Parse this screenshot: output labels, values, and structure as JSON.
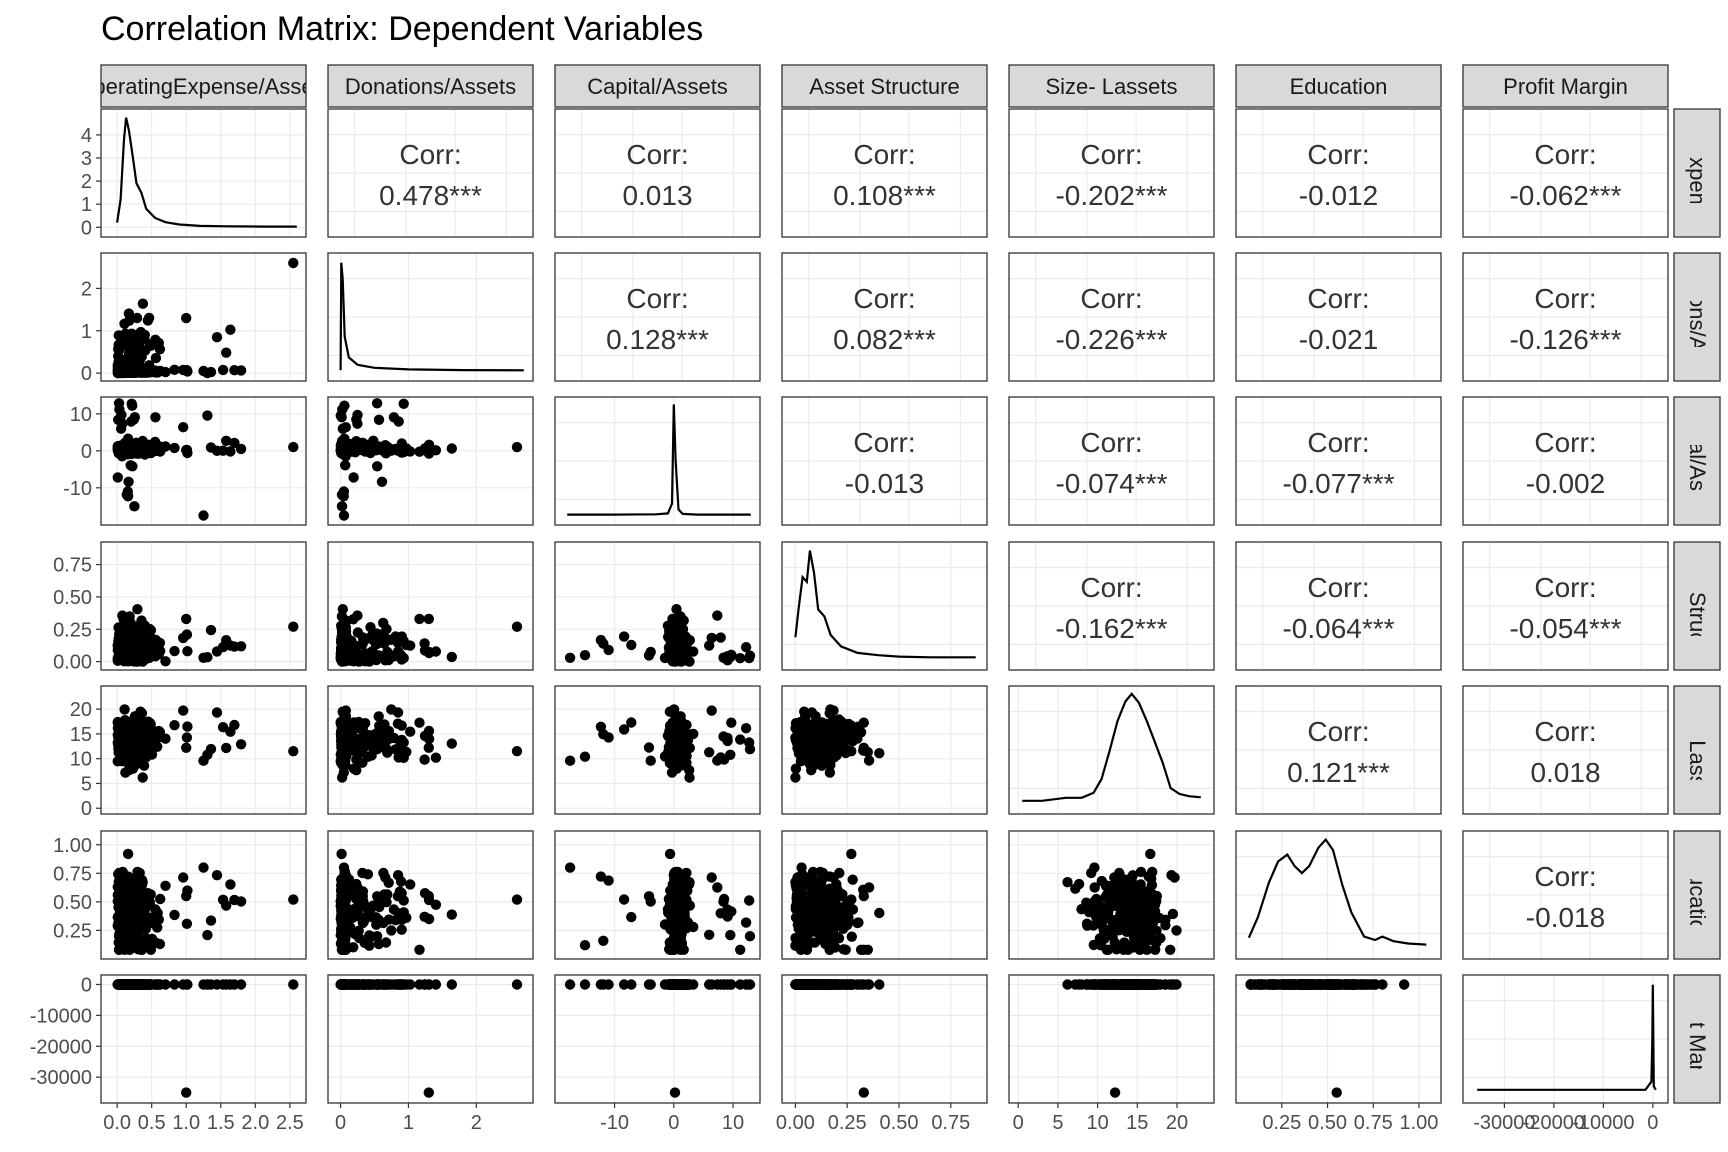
{
  "chart_data": {
    "type": "scatterplot-matrix",
    "title": "Correlation Matrix: Dependent Variables",
    "variables": [
      "OperatingExpense/Assets",
      "Donations/Assets",
      "Capital/Assets",
      "Asset Structure",
      "Size- Lassets",
      "Education",
      "Profit Margin"
    ],
    "axes": [
      {
        "range": [
          -0.1,
          2.6
        ],
        "ticks": [
          "0.0",
          "0.5",
          "1.0",
          "1.5",
          "2.0",
          "2.5"
        ],
        "tick_values": [
          0,
          0.5,
          1,
          1.5,
          2,
          2.5
        ]
      },
      {
        "range": [
          -0.05,
          2.7
        ],
        "ticks": [
          "0",
          "1",
          "2"
        ],
        "tick_values": [
          0,
          1,
          2
        ]
      },
      {
        "range": [
          -18.5,
          13
        ],
        "ticks": [
          "-10",
          "0",
          "10"
        ],
        "tick_values": [
          -10,
          0,
          10
        ]
      },
      {
        "range": [
          -0.02,
          0.88
        ],
        "ticks": [
          "0.00",
          "0.25",
          "0.50",
          "0.75"
        ],
        "tick_values": [
          0,
          0.25,
          0.5,
          0.75
        ]
      },
      {
        "range": [
          0,
          23.5
        ],
        "ticks": [
          "0",
          "5",
          "10",
          "15",
          "20"
        ],
        "tick_values": [
          0,
          5,
          10,
          15,
          20
        ]
      },
      {
        "range": [
          0.05,
          1.07
        ],
        "ticks": [
          "0.25",
          "0.50",
          "0.75",
          "1.00"
        ],
        "tick_values": [
          0.25,
          0.5,
          0.75,
          1.0
        ]
      },
      {
        "range": [
          -36500,
          1200
        ],
        "ticks": [
          "-30000",
          "-20000",
          "-10000",
          "0"
        ],
        "tick_values": [
          -30000,
          -20000,
          -10000,
          0
        ]
      }
    ],
    "diagonal_y_ticks": {
      "labels": [
        "0",
        "1",
        "2",
        "3",
        "4"
      ],
      "values": [
        0,
        1,
        2,
        3,
        4
      ],
      "range": [
        -0.2,
        4.9
      ]
    },
    "correlations": [
      {
        "row": 0,
        "col": 1,
        "label": "Corr:",
        "value": "0.478***"
      },
      {
        "row": 0,
        "col": 2,
        "label": "Corr:",
        "value": "0.013"
      },
      {
        "row": 0,
        "col": 3,
        "label": "Corr:",
        "value": "0.108***"
      },
      {
        "row": 0,
        "col": 4,
        "label": "Corr:",
        "value": "-0.202***"
      },
      {
        "row": 0,
        "col": 5,
        "label": "Corr:",
        "value": "-0.012"
      },
      {
        "row": 0,
        "col": 6,
        "label": "Corr:",
        "value": "-0.062***"
      },
      {
        "row": 1,
        "col": 2,
        "label": "Corr:",
        "value": "0.128***"
      },
      {
        "row": 1,
        "col": 3,
        "label": "Corr:",
        "value": "0.082***"
      },
      {
        "row": 1,
        "col": 4,
        "label": "Corr:",
        "value": "-0.226***"
      },
      {
        "row": 1,
        "col": 5,
        "label": "Corr:",
        "value": "-0.021"
      },
      {
        "row": 1,
        "col": 6,
        "label": "Corr:",
        "value": "-0.126***"
      },
      {
        "row": 2,
        "col": 3,
        "label": "Corr:",
        "value": "-0.013"
      },
      {
        "row": 2,
        "col": 4,
        "label": "Corr:",
        "value": "-0.074***"
      },
      {
        "row": 2,
        "col": 5,
        "label": "Corr:",
        "value": "-0.077***"
      },
      {
        "row": 2,
        "col": 6,
        "label": "Corr:",
        "value": "-0.002"
      },
      {
        "row": 3,
        "col": 4,
        "label": "Corr:",
        "value": "-0.162***"
      },
      {
        "row": 3,
        "col": 5,
        "label": "Corr:",
        "value": "-0.064***"
      },
      {
        "row": 3,
        "col": 6,
        "label": "Corr:",
        "value": "-0.054***"
      },
      {
        "row": 4,
        "col": 5,
        "label": "Corr:",
        "value": "0.121***"
      },
      {
        "row": 4,
        "col": 6,
        "label": "Corr:",
        "value": "0.018"
      },
      {
        "row": 5,
        "col": 6,
        "label": "Corr:",
        "value": "-0.018"
      }
    ],
    "densities": [
      [
        [
          0,
          0.2
        ],
        [
          0.05,
          1.2
        ],
        [
          0.1,
          3.8
        ],
        [
          0.13,
          4.75
        ],
        [
          0.17,
          4.2
        ],
        [
          0.22,
          3.2
        ],
        [
          0.28,
          1.9
        ],
        [
          0.35,
          1.5
        ],
        [
          0.42,
          0.8
        ],
        [
          0.55,
          0.4
        ],
        [
          0.7,
          0.22
        ],
        [
          0.9,
          0.12
        ],
        [
          1.2,
          0.06
        ],
        [
          1.6,
          0.04
        ],
        [
          2.1,
          0.03
        ],
        [
          2.6,
          0.03
        ]
      ],
      [
        [
          0,
          0.05
        ],
        [
          0.01,
          4.7
        ],
        [
          0.03,
          4.0
        ],
        [
          0.06,
          1.5
        ],
        [
          0.12,
          0.6
        ],
        [
          0.25,
          0.28
        ],
        [
          0.5,
          0.15
        ],
        [
          1.0,
          0.08
        ],
        [
          1.8,
          0.05
        ],
        [
          2.7,
          0.04
        ]
      ],
      [
        [
          -18,
          0.03
        ],
        [
          -10,
          0.03
        ],
        [
          -3,
          0.04
        ],
        [
          -1,
          0.08
        ],
        [
          -0.3,
          0.5
        ],
        [
          0,
          4.8
        ],
        [
          0.3,
          2.4
        ],
        [
          0.8,
          0.25
        ],
        [
          1.5,
          0.06
        ],
        [
          4,
          0.03
        ],
        [
          13,
          0.03
        ]
      ],
      [
        [
          0,
          1.0
        ],
        [
          0.015,
          2.2
        ],
        [
          0.035,
          3.6
        ],
        [
          0.055,
          3.4
        ],
        [
          0.07,
          4.75
        ],
        [
          0.09,
          3.8
        ],
        [
          0.11,
          2.2
        ],
        [
          0.14,
          1.9
        ],
        [
          0.17,
          1.1
        ],
        [
          0.22,
          0.6
        ],
        [
          0.3,
          0.32
        ],
        [
          0.4,
          0.22
        ],
        [
          0.5,
          0.16
        ],
        [
          0.65,
          0.13
        ],
        [
          0.87,
          0.13
        ]
      ],
      [
        [
          0.5,
          0.15
        ],
        [
          3,
          0.15
        ],
        [
          6,
          0.28
        ],
        [
          8,
          0.28
        ],
        [
          9.5,
          0.5
        ],
        [
          10.5,
          1.1
        ],
        [
          11.5,
          2.3
        ],
        [
          12.5,
          3.6
        ],
        [
          13.5,
          4.45
        ],
        [
          14.3,
          4.78
        ],
        [
          15.2,
          4.4
        ],
        [
          16.2,
          3.6
        ],
        [
          17.2,
          2.7
        ],
        [
          18.2,
          1.8
        ],
        [
          19.2,
          0.7
        ],
        [
          20.3,
          0.45
        ],
        [
          21.5,
          0.35
        ],
        [
          23,
          0.3
        ]
      ],
      [
        [
          0.07,
          0.5
        ],
        [
          0.12,
          1.4
        ],
        [
          0.18,
          2.9
        ],
        [
          0.23,
          3.8
        ],
        [
          0.28,
          4.1
        ],
        [
          0.32,
          3.6
        ],
        [
          0.36,
          3.3
        ],
        [
          0.4,
          3.6
        ],
        [
          0.45,
          4.4
        ],
        [
          0.49,
          4.75
        ],
        [
          0.53,
          4.3
        ],
        [
          0.58,
          2.8
        ],
        [
          0.63,
          1.6
        ],
        [
          0.7,
          0.55
        ],
        [
          0.76,
          0.4
        ],
        [
          0.8,
          0.55
        ],
        [
          0.86,
          0.35
        ],
        [
          0.94,
          0.25
        ],
        [
          1.04,
          0.2
        ]
      ],
      [
        [
          -35500,
          0.15
        ],
        [
          -30000,
          0.15
        ],
        [
          -20000,
          0.15
        ],
        [
          -10000,
          0.15
        ],
        [
          -1500,
          0.15
        ],
        [
          -300,
          0.5
        ],
        [
          -80,
          2.5
        ],
        [
          0,
          4.7
        ],
        [
          200,
          0.3
        ],
        [
          600,
          0.15
        ]
      ]
    ]
  }
}
